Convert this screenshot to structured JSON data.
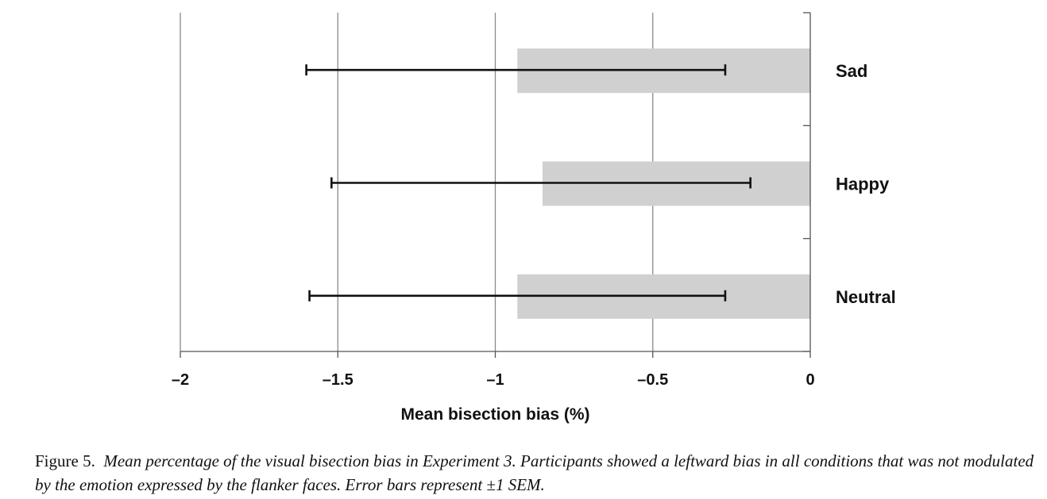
{
  "chart_data": {
    "type": "bar",
    "orientation": "horizontal",
    "categories": [
      "Sad",
      "Happy",
      "Neutral"
    ],
    "values": [
      -0.93,
      -0.85,
      -0.93
    ],
    "error_bars": [
      {
        "low": -1.6,
        "high": -0.27
      },
      {
        "low": -1.52,
        "high": -0.19
      },
      {
        "low": -1.59,
        "high": -0.27
      }
    ],
    "xlabel": "Mean bisection bias (%)",
    "xlim": [
      -2,
      0
    ],
    "xticks": [
      -2,
      -1.5,
      -1,
      -0.5,
      0
    ],
    "xtick_labels": [
      "–2",
      "–1.5",
      "–1",
      "–0.5",
      "0"
    ],
    "grid": "vertical",
    "bar_color": "#d0d0d0"
  },
  "caption": {
    "label": "Figure 5.",
    "text": "Mean percentage of the visual bisection bias in Experiment 3. Participants showed a leftward bias in all conditions that was not modulated by the emotion expressed by the flanker faces. Error bars represent ±1 SEM."
  }
}
